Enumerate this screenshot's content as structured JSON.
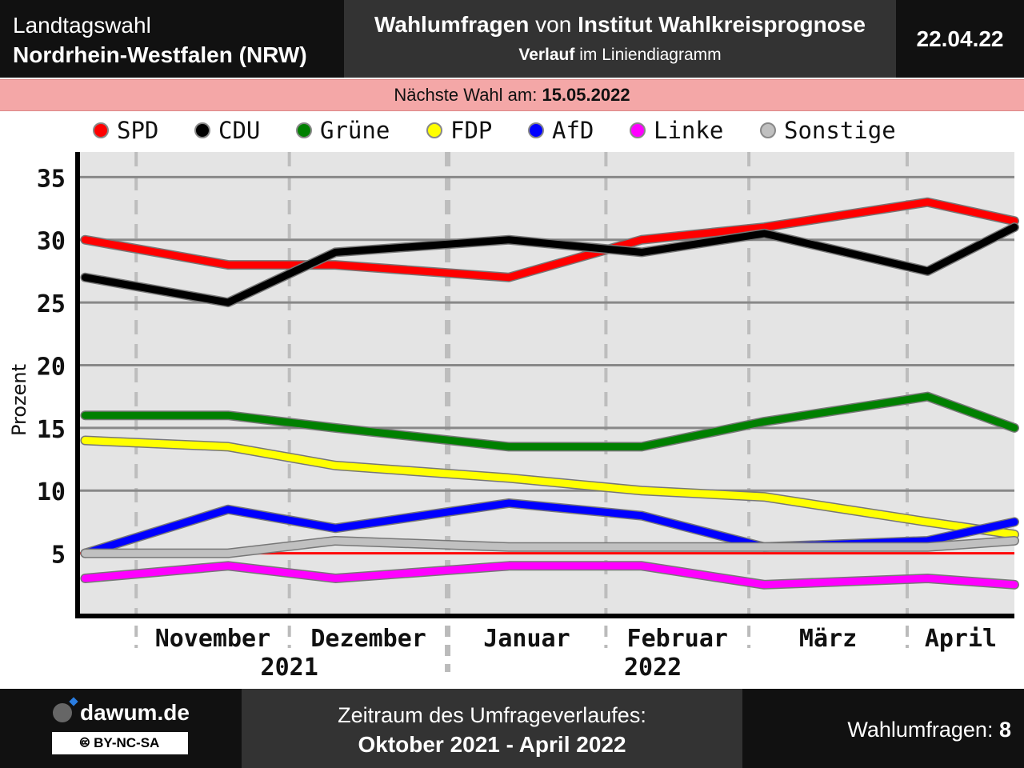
{
  "header": {
    "line1": "Landtagswahl",
    "line2": "Nordrhein-Westfalen (NRW)",
    "title_bold1": "Wahlumfragen",
    "title_mid": " von ",
    "title_bold2": "Institut Wahlkreisprognose",
    "subtitle_bold": "Verlauf",
    "subtitle_rest": " im Liniendiagramm",
    "date": "22.04.22"
  },
  "next_election": {
    "label": "Nächste Wahl am: ",
    "date": "15.05.2022"
  },
  "legend": [
    {
      "name": "SPD",
      "color": "#ff0000"
    },
    {
      "name": "CDU",
      "color": "#000000"
    },
    {
      "name": "Grüne",
      "color": "#008000"
    },
    {
      "name": "FDP",
      "color": "#ffff00"
    },
    {
      "name": "AfD",
      "color": "#0000ff"
    },
    {
      "name": "Linke",
      "color": "#ff00ff"
    },
    {
      "name": "Sonstige",
      "color": "#c0c0c0"
    }
  ],
  "chart_data": {
    "type": "line",
    "ylabel": "Prozent",
    "ylim": [
      0,
      37
    ],
    "yticks": [
      5,
      10,
      15,
      20,
      25,
      30,
      35
    ],
    "threshold": 5,
    "threshold_color": "#ff0000",
    "grid": true,
    "x_dates": [
      "2021-10-22",
      "2021-11-19",
      "2021-12-10",
      "2022-01-13",
      "2022-02-08",
      "2022-03-04",
      "2022-04-05",
      "2022-04-22"
    ],
    "month_labels": [
      "November",
      "Dezember",
      "Januar",
      "Februar",
      "März",
      "April"
    ],
    "year_labels": [
      "2021",
      "2022"
    ],
    "series": [
      {
        "name": "SPD",
        "color": "#ff0000",
        "values": [
          30,
          28,
          28,
          27,
          30,
          31,
          33,
          31.5
        ]
      },
      {
        "name": "CDU",
        "color": "#000000",
        "values": [
          27,
          25,
          29,
          30,
          29,
          30.5,
          27.5,
          31
        ]
      },
      {
        "name": "Grüne",
        "color": "#008000",
        "values": [
          16,
          16,
          15,
          13.5,
          13.5,
          15.5,
          17.5,
          15
        ]
      },
      {
        "name": "FDP",
        "color": "#ffff00",
        "values": [
          14,
          13.5,
          12,
          11,
          10,
          9.5,
          7.5,
          6.5
        ]
      },
      {
        "name": "AfD",
        "color": "#0000ff",
        "values": [
          5,
          8.5,
          7,
          9,
          8,
          5.5,
          6,
          7.5
        ]
      },
      {
        "name": "Linke",
        "color": "#ff00ff",
        "values": [
          3,
          4,
          3,
          4,
          4,
          2.5,
          3,
          2.5
        ]
      },
      {
        "name": "Sonstige",
        "color": "#c0c0c0",
        "values": [
          5,
          5,
          6,
          5.5,
          5.5,
          5.5,
          5.5,
          6
        ]
      }
    ]
  },
  "footer": {
    "brand": "dawum.de",
    "license": "BY-NC-SA",
    "period_label": "Zeitraum des Umfrageverlaufes:",
    "period": "Oktober 2021 - April 2022",
    "count_label": "Wahlumfragen: ",
    "count": "8"
  }
}
